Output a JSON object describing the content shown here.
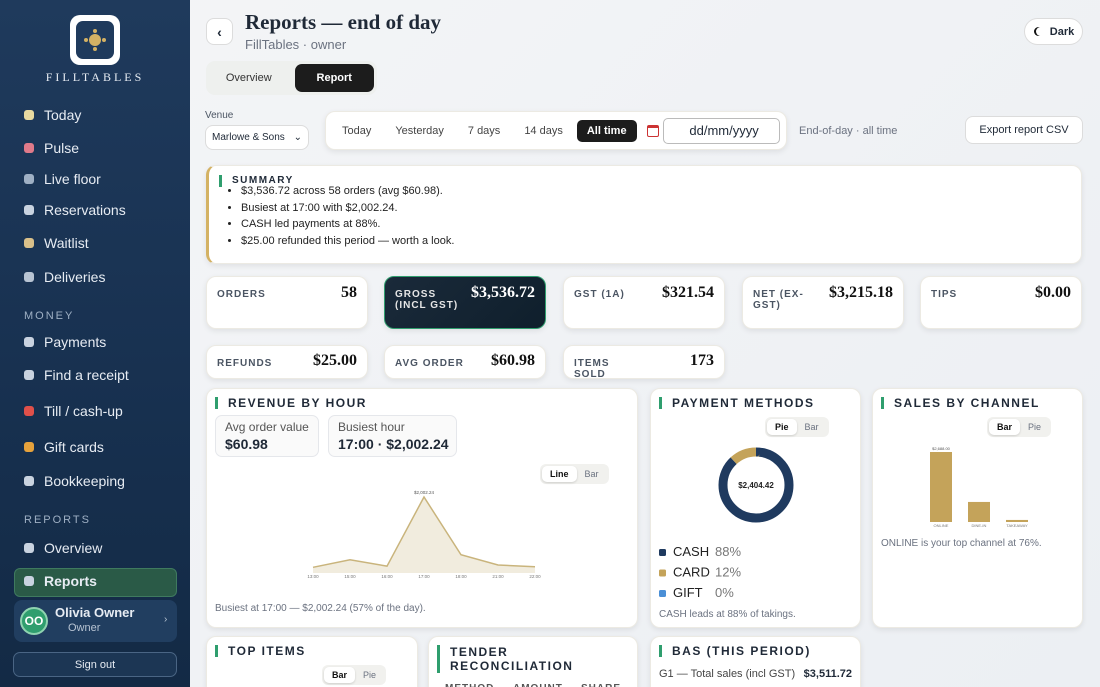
{
  "sidebar": {
    "brand": "FILLTABLES",
    "nav": [
      "Today",
      "Pulse",
      "Live floor",
      "Reservations",
      "Waitlist",
      "Deliveries"
    ],
    "money_heading": "MONEY",
    "money": [
      "Payments",
      "Find a receipt",
      "Till / cash-up",
      "Gift cards",
      "Bookkeeping"
    ],
    "reports_heading": "REPORTS",
    "reports": [
      "Overview",
      "Reports"
    ],
    "reports_active": 1,
    "user": {
      "initials": "OO",
      "name": "Olivia Owner",
      "role": "Owner"
    },
    "sign_out": "Sign out"
  },
  "header": {
    "title": "Reports — end of day",
    "subtitle": "FillTables · owner",
    "theme_button": "Dark",
    "tabs": [
      "Overview",
      "Report"
    ],
    "tab_active": 1
  },
  "filters": {
    "venue_label": "Venue",
    "venue": "Marlowe & Sons",
    "ranges": [
      "Today",
      "Yesterday",
      "7 days",
      "14 days",
      "All time"
    ],
    "range_active": 4,
    "date_placeholder": "dd/mm/yyyy",
    "range_note": "End-of-day · all time",
    "export": "Export report CSV"
  },
  "summary": {
    "title": "SUMMARY",
    "items": [
      "$3,536.72 across 58 orders (avg $60.98).",
      "Busiest at 17:00 with $2,002.24.",
      "CASH led payments at 88%.",
      "$25.00 refunded this period — worth a look."
    ]
  },
  "kpis": [
    {
      "label": "ORDERS",
      "value": "58"
    },
    {
      "label": "GROSS (INCL GST)",
      "value": "$3,536.72",
      "highlight": true
    },
    {
      "label": "GST (1A)",
      "value": "$321.54"
    },
    {
      "label": "NET (EX-GST)",
      "value": "$3,215.18"
    },
    {
      "label": "TIPS",
      "value": "$0.00"
    },
    {
      "label": "REFUNDS",
      "value": "$25.00"
    },
    {
      "label": "AVG ORDER",
      "value": "$60.98"
    },
    {
      "label": "ITEMS SOLD",
      "value": "173"
    }
  ],
  "revenue_by_hour": {
    "title": "REVENUE BY HOUR",
    "stats": [
      {
        "label": "Avg order value",
        "value": "$60.98"
      },
      {
        "label": "Busiest hour",
        "value": "17:00 · $2,002.24"
      }
    ],
    "toggle": [
      "Line",
      "Bar"
    ],
    "toggle_active": 0,
    "chart": {
      "type": "line",
      "categories": [
        "13:00",
        "15:00",
        "16:00",
        "17:00",
        "18:00",
        "21:00",
        "22:00"
      ],
      "values": [
        150,
        350,
        180,
        2002.24,
        480,
        210,
        164.48
      ],
      "value_labels": [
        null,
        null,
        null,
        "$2,002.24",
        null,
        null,
        null
      ],
      "color": "#c9b47c"
    },
    "caption": "Busiest at 17:00 — $2,002.24 (57% of the day)."
  },
  "payment_methods": {
    "title": "PAYMENT METHODS",
    "toggle": [
      "Pie",
      "Bar"
    ],
    "toggle_active": 0,
    "chart": {
      "type": "donut",
      "center_label": "$2,404.42",
      "categories": [
        "CASH",
        "CARD",
        "GIFT"
      ],
      "values": [
        88,
        12,
        0
      ],
      "value_labels": [
        "88%",
        "12%",
        "0%"
      ],
      "colors": [
        "#1f3a5f",
        "#c4a35a",
        "#4a8fd6"
      ]
    },
    "caption": "CASH leads at 88% of takings."
  },
  "sales_by_channel": {
    "title": "SALES BY CHANNEL",
    "toggle": [
      "Bar",
      "Pie"
    ],
    "toggle_active": 0,
    "chart": {
      "type": "bar",
      "categories": [
        "ONLINE",
        "DINE-IN",
        "TAKEAWAY"
      ],
      "values": [
        2688,
        770,
        78.72
      ],
      "value_labels": [
        "$2,688.00",
        null,
        null
      ],
      "color": "#c4a35a"
    },
    "caption": "ONLINE is your top channel at 76%."
  },
  "top_items": {
    "title": "TOP ITEMS",
    "toggle": [
      "Bar",
      "Pie"
    ],
    "toggle_active": 0
  },
  "tender": {
    "title": "TENDER RECONCILIATION",
    "columns": [
      "METHOD",
      "AMOUNT",
      "SHARE"
    ]
  },
  "bas": {
    "title": "BAS (THIS PERIOD)",
    "rows": [
      {
        "label": "G1 — Total sales (incl GST)",
        "value": "$3,511.72"
      }
    ]
  }
}
